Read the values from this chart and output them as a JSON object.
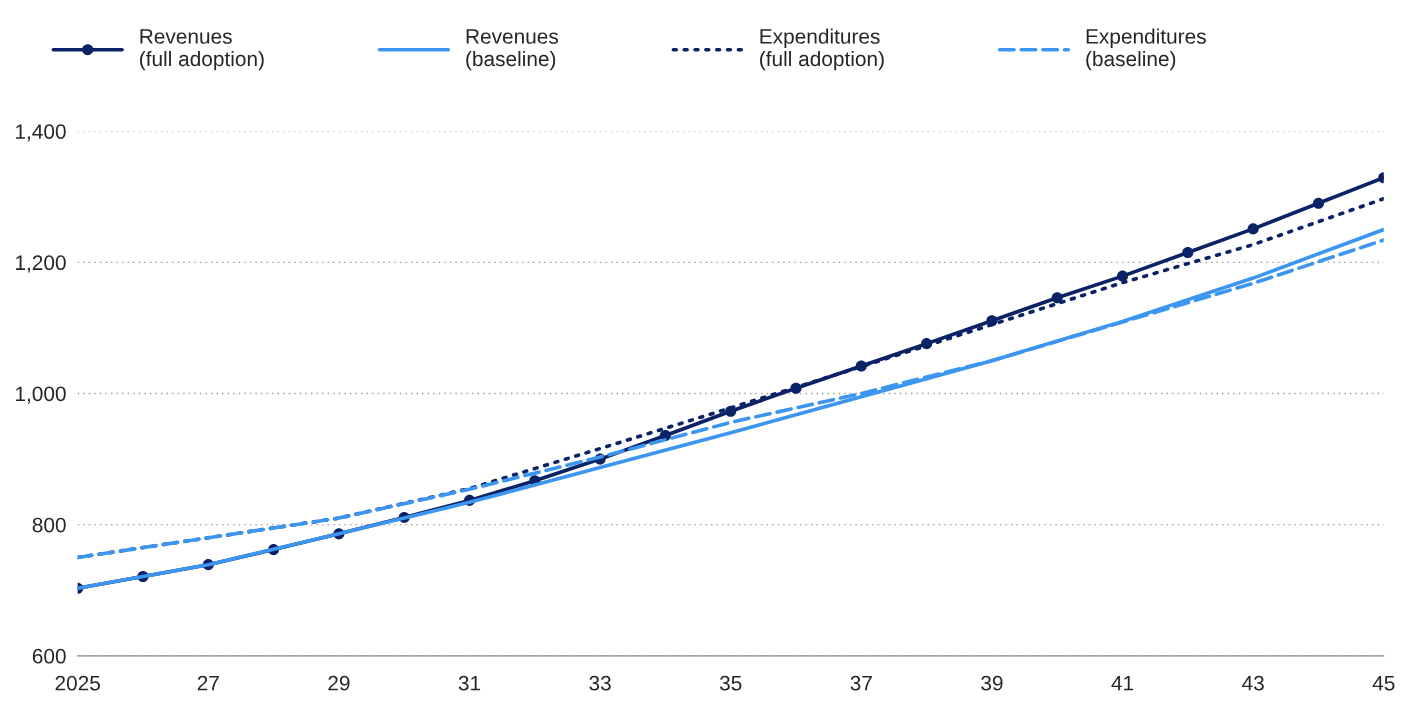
{
  "chart_data": {
    "type": "line",
    "xlim": [
      2025,
      2045
    ],
    "ylim": [
      600,
      1400
    ],
    "xticks": [
      2025,
      {
        "value": 2027,
        "label": "27"
      },
      {
        "value": 2029,
        "label": "29"
      },
      {
        "value": 2031,
        "label": "31"
      },
      {
        "value": 2033,
        "label": "33"
      },
      {
        "value": 2035,
        "label": "35"
      },
      {
        "value": 2037,
        "label": "37"
      },
      {
        "value": 2039,
        "label": "39"
      },
      {
        "value": 2041,
        "label": "41"
      },
      {
        "value": 2043,
        "label": "43"
      },
      {
        "value": 2045,
        "label": "45"
      }
    ],
    "yticks": [
      600,
      800,
      {
        "value": 1000,
        "label": "1,000"
      },
      {
        "value": 1200,
        "label": "1,200"
      },
      {
        "value": 1400,
        "label": "1,400"
      }
    ],
    "grid": "y",
    "legend": "top",
    "series": [
      {
        "name": "Revenues\n(full adoption)",
        "color": "#0b2366",
        "marker": "circle",
        "line_style": "solid",
        "x": [
          2025,
          2026,
          2027,
          2028,
          2029,
          2030,
          2031,
          2032,
          2033,
          2034,
          2035,
          2036,
          2037,
          2038,
          2039,
          2040,
          2041,
          2042,
          2043,
          2044,
          2045
        ],
        "values": [
          703,
          721,
          739,
          762,
          786,
          811,
          837,
          867,
          900,
          936,
          973,
          1008,
          1042,
          1076,
          1111,
          1146,
          1179,
          1215,
          1251,
          1290,
          1329
        ]
      },
      {
        "name": "Revenues\n(baseline)",
        "color": "#3c96f0",
        "marker": "none",
        "line_style": "solid",
        "x": [
          2025,
          2027,
          2029,
          2031,
          2033,
          2035,
          2037,
          2039,
          2041,
          2043,
          2045
        ],
        "values": [
          703,
          739,
          786,
          834,
          887,
          940,
          995,
          1050,
          1110,
          1176,
          1250
        ]
      },
      {
        "name": "Expenditures\n(full adoption)",
        "color": "#0b2366",
        "marker": "none",
        "line_style": "dotted",
        "x": [
          2025,
          2027,
          2029,
          2031,
          2033,
          2035,
          2037,
          2039,
          2041,
          2043,
          2045
        ],
        "values": [
          750,
          780,
          810,
          855,
          916,
          978,
          1041,
          1105,
          1169,
          1227,
          1297
        ]
      },
      {
        "name": "Expenditures\n(baseline)",
        "color": "#3c96f0",
        "marker": "none",
        "line_style": "dashed",
        "x": [
          2025,
          2027,
          2029,
          2031,
          2033,
          2035,
          2037,
          2039,
          2041,
          2043,
          2045
        ],
        "values": [
          750,
          780,
          810,
          854,
          903,
          956,
          1000,
          1050,
          1109,
          1168,
          1234
        ]
      }
    ]
  }
}
